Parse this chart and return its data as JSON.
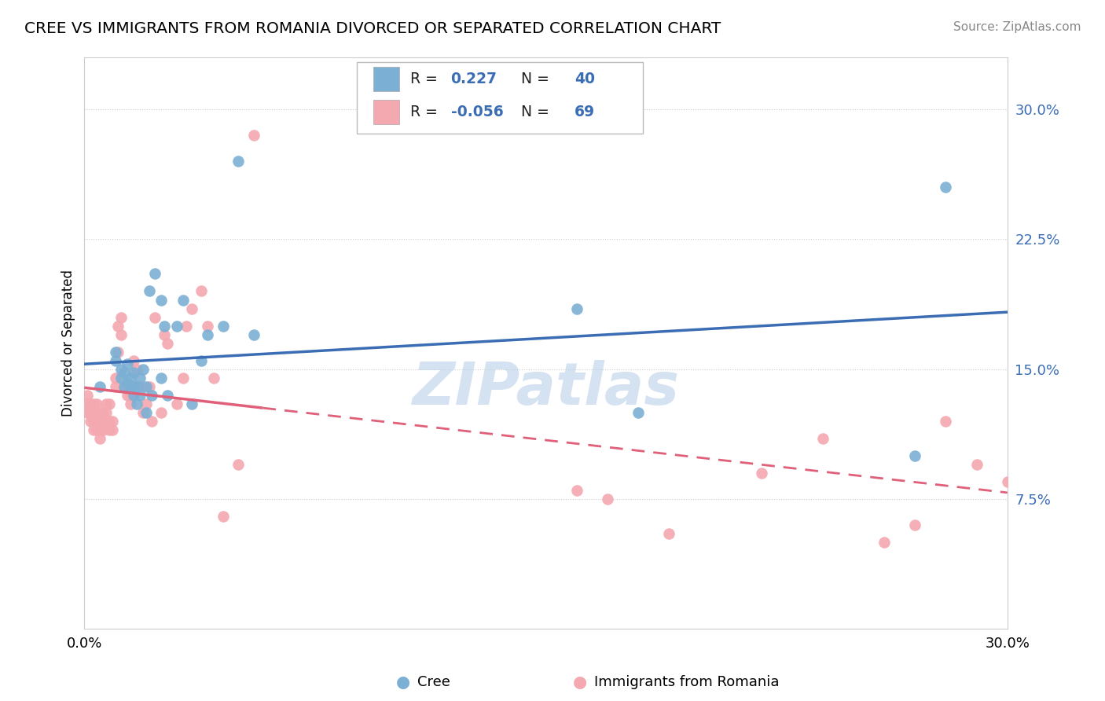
{
  "title": "CREE VS IMMIGRANTS FROM ROMANIA DIVORCED OR SEPARATED CORRELATION CHART",
  "source": "Source: ZipAtlas.com",
  "ylabel": "Divorced or Separated",
  "legend_label1": "Cree",
  "legend_label2": "Immigrants from Romania",
  "r1": 0.227,
  "n1": 40,
  "r2": -0.056,
  "n2": 69,
  "blue_color": "#7BAFD4",
  "pink_color": "#F4A8B0",
  "line_blue": "#3B6DB5",
  "line_pink": "#E0607A",
  "yticks": [
    0.075,
    0.15,
    0.225,
    0.3
  ],
  "ytick_labels": [
    "7.5%",
    "15.0%",
    "22.5%",
    "30.0%"
  ],
  "xlim": [
    0.0,
    0.3
  ],
  "ylim": [
    0.0,
    0.33
  ],
  "cree_x": [
    0.005,
    0.01,
    0.01,
    0.012,
    0.012,
    0.013,
    0.013,
    0.014,
    0.014,
    0.015,
    0.015,
    0.016,
    0.016,
    0.016,
    0.017,
    0.017,
    0.018,
    0.018,
    0.019,
    0.02,
    0.02,
    0.021,
    0.022,
    0.023,
    0.025,
    0.025,
    0.026,
    0.027,
    0.03,
    0.032,
    0.035,
    0.038,
    0.04,
    0.045,
    0.05,
    0.055,
    0.16,
    0.18,
    0.27,
    0.28
  ],
  "cree_y": [
    0.14,
    0.155,
    0.16,
    0.145,
    0.15,
    0.14,
    0.148,
    0.142,
    0.153,
    0.14,
    0.145,
    0.135,
    0.14,
    0.148,
    0.13,
    0.14,
    0.135,
    0.145,
    0.15,
    0.125,
    0.14,
    0.195,
    0.135,
    0.205,
    0.19,
    0.145,
    0.175,
    0.135,
    0.175,
    0.19,
    0.13,
    0.155,
    0.17,
    0.175,
    0.27,
    0.17,
    0.185,
    0.125,
    0.1,
    0.255
  ],
  "romania_x": [
    0.001,
    0.001,
    0.001,
    0.002,
    0.002,
    0.002,
    0.003,
    0.003,
    0.003,
    0.003,
    0.004,
    0.004,
    0.004,
    0.004,
    0.005,
    0.005,
    0.005,
    0.006,
    0.006,
    0.006,
    0.007,
    0.007,
    0.007,
    0.008,
    0.008,
    0.008,
    0.009,
    0.009,
    0.01,
    0.01,
    0.011,
    0.011,
    0.012,
    0.012,
    0.013,
    0.014,
    0.015,
    0.015,
    0.016,
    0.017,
    0.018,
    0.019,
    0.02,
    0.021,
    0.022,
    0.023,
    0.025,
    0.026,
    0.027,
    0.03,
    0.032,
    0.033,
    0.035,
    0.038,
    0.04,
    0.042,
    0.045,
    0.05,
    0.055,
    0.16,
    0.17,
    0.19,
    0.22,
    0.24,
    0.26,
    0.27,
    0.28,
    0.29,
    0.3
  ],
  "romania_y": [
    0.135,
    0.13,
    0.125,
    0.125,
    0.12,
    0.13,
    0.125,
    0.12,
    0.115,
    0.13,
    0.12,
    0.115,
    0.125,
    0.13,
    0.12,
    0.115,
    0.11,
    0.125,
    0.12,
    0.115,
    0.13,
    0.125,
    0.12,
    0.12,
    0.115,
    0.13,
    0.12,
    0.115,
    0.145,
    0.14,
    0.16,
    0.175,
    0.18,
    0.17,
    0.14,
    0.135,
    0.13,
    0.135,
    0.155,
    0.15,
    0.14,
    0.125,
    0.13,
    0.14,
    0.12,
    0.18,
    0.125,
    0.17,
    0.165,
    0.13,
    0.145,
    0.175,
    0.185,
    0.195,
    0.175,
    0.145,
    0.065,
    0.095,
    0.285,
    0.08,
    0.075,
    0.055,
    0.09,
    0.11,
    0.05,
    0.06,
    0.12,
    0.095,
    0.085
  ]
}
